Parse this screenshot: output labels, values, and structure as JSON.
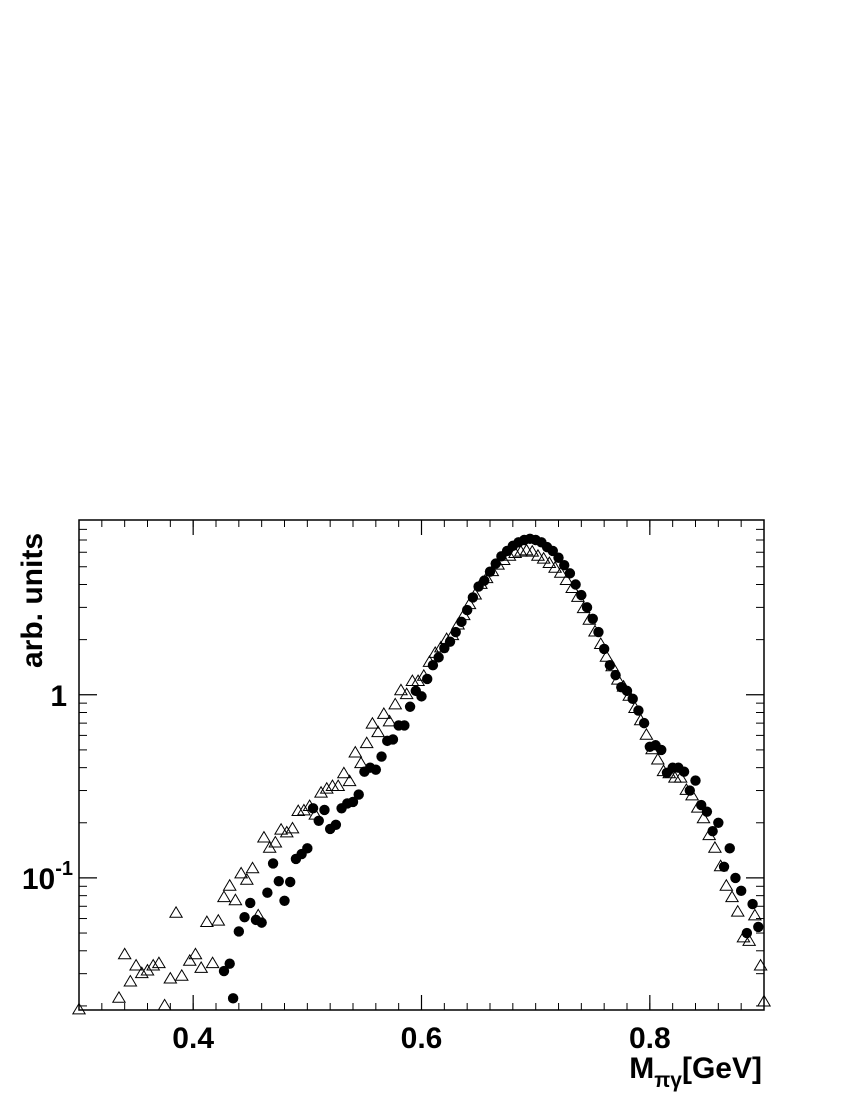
{
  "chart_data": {
    "type": "scatter",
    "title": "",
    "xlabel": "M",
    "xlabel_subscript": "πγ",
    "xlabel_unit": "[GeV]",
    "ylabel": "arb. units",
    "y_scale": "log",
    "xlim": [
      0.3,
      0.9
    ],
    "ylim": [
      0.019,
      9.0
    ],
    "x_ticks": [
      {
        "value": 0.4,
        "label": "0.4"
      },
      {
        "value": 0.6,
        "label": "0.6"
      },
      {
        "value": 0.8,
        "label": "0.8"
      }
    ],
    "y_ticks": [
      {
        "value": 1,
        "label": "1"
      },
      {
        "value": 0.1,
        "label": "10",
        "exponent": "-1"
      }
    ],
    "grid": false,
    "legend": "none",
    "series": [
      {
        "marker": "open-triangle",
        "color": "#000000",
        "points": [
          [
            0.3,
            0.019
          ],
          [
            0.335,
            0.022
          ],
          [
            0.34,
            0.038
          ],
          [
            0.345,
            0.027
          ],
          [
            0.35,
            0.033
          ],
          [
            0.355,
            0.03
          ],
          [
            0.36,
            0.031
          ],
          [
            0.365,
            0.033
          ],
          [
            0.37,
            0.034
          ],
          [
            0.375,
            0.02
          ],
          [
            0.38,
            0.028
          ],
          [
            0.385,
            0.064
          ],
          [
            0.39,
            0.029
          ],
          [
            0.397,
            0.035
          ],
          [
            0.402,
            0.038
          ],
          [
            0.407,
            0.032
          ],
          [
            0.412,
            0.057
          ],
          [
            0.417,
            0.034
          ],
          [
            0.422,
            0.058
          ],
          [
            0.427,
            0.078
          ],
          [
            0.432,
            0.09
          ],
          [
            0.437,
            0.075
          ],
          [
            0.442,
            0.105
          ],
          [
            0.447,
            0.097
          ],
          [
            0.452,
            0.112
          ],
          [
            0.457,
            0.062
          ],
          [
            0.462,
            0.165
          ],
          [
            0.467,
            0.145
          ],
          [
            0.472,
            0.155
          ],
          [
            0.477,
            0.182
          ],
          [
            0.482,
            0.176
          ],
          [
            0.487,
            0.185
          ],
          [
            0.492,
            0.23
          ],
          [
            0.497,
            0.232
          ],
          [
            0.502,
            0.245
          ],
          [
            0.507,
            0.22
          ],
          [
            0.512,
            0.29
          ],
          [
            0.517,
            0.305
          ],
          [
            0.522,
            0.315
          ],
          [
            0.527,
            0.315
          ],
          [
            0.532,
            0.37
          ],
          [
            0.537,
            0.335
          ],
          [
            0.542,
            0.48
          ],
          [
            0.547,
            0.42
          ],
          [
            0.552,
            0.54
          ],
          [
            0.557,
            0.69
          ],
          [
            0.562,
            0.62
          ],
          [
            0.567,
            0.78
          ],
          [
            0.572,
            0.71
          ],
          [
            0.577,
            0.88
          ],
          [
            0.582,
            1.05
          ],
          [
            0.587,
            1.0
          ],
          [
            0.592,
            1.18
          ],
          [
            0.597,
            1.18
          ],
          [
            0.602,
            1.26
          ],
          [
            0.607,
            1.5
          ],
          [
            0.612,
            1.68
          ],
          [
            0.617,
            1.8
          ],
          [
            0.622,
            2.0
          ],
          [
            0.627,
            2.1
          ],
          [
            0.632,
            2.4
          ],
          [
            0.637,
            2.7
          ],
          [
            0.642,
            3.1
          ],
          [
            0.647,
            3.5
          ],
          [
            0.652,
            4.0
          ],
          [
            0.657,
            4.3
          ],
          [
            0.662,
            4.7
          ],
          [
            0.667,
            5.1
          ],
          [
            0.672,
            5.4
          ],
          [
            0.677,
            5.7
          ],
          [
            0.682,
            5.9
          ],
          [
            0.687,
            6.0
          ],
          [
            0.692,
            6.1
          ],
          [
            0.697,
            6.0
          ],
          [
            0.702,
            5.7
          ],
          [
            0.707,
            5.5
          ],
          [
            0.712,
            5.2
          ],
          [
            0.717,
            4.9
          ],
          [
            0.722,
            4.6
          ],
          [
            0.727,
            4.2
          ],
          [
            0.732,
            3.8
          ],
          [
            0.737,
            3.4
          ],
          [
            0.742,
            2.95
          ],
          [
            0.747,
            2.55
          ],
          [
            0.752,
            2.2
          ],
          [
            0.757,
            1.88
          ],
          [
            0.762,
            1.6
          ],
          [
            0.767,
            1.42
          ],
          [
            0.772,
            1.2
          ],
          [
            0.777,
            1.1
          ],
          [
            0.782,
            0.98
          ],
          [
            0.787,
            0.84
          ],
          [
            0.792,
            0.72
          ],
          [
            0.797,
            0.6
          ],
          [
            0.802,
            0.5
          ],
          [
            0.807,
            0.44
          ],
          [
            0.812,
            0.38
          ],
          [
            0.817,
            0.37
          ],
          [
            0.822,
            0.35
          ],
          [
            0.827,
            0.35
          ],
          [
            0.832,
            0.3
          ],
          [
            0.837,
            0.28
          ],
          [
            0.842,
            0.24
          ],
          [
            0.847,
            0.21
          ],
          [
            0.852,
            0.17
          ],
          [
            0.857,
            0.145
          ],
          [
            0.862,
            0.115
          ],
          [
            0.867,
            0.09
          ],
          [
            0.872,
            0.078
          ],
          [
            0.877,
            0.065
          ],
          [
            0.882,
            0.047
          ],
          [
            0.887,
            0.045
          ],
          [
            0.892,
            0.062
          ],
          [
            0.897,
            0.033
          ],
          [
            0.9,
            0.021
          ]
        ]
      },
      {
        "marker": "filled-circle",
        "color": "#000000",
        "points": [
          [
            0.427,
            0.031
          ],
          [
            0.432,
            0.034
          ],
          [
            0.435,
            0.022
          ],
          [
            0.44,
            0.051
          ],
          [
            0.445,
            0.061
          ],
          [
            0.45,
            0.073
          ],
          [
            0.455,
            0.059
          ],
          [
            0.46,
            0.057
          ],
          [
            0.465,
            0.083
          ],
          [
            0.47,
            0.12
          ],
          [
            0.475,
            0.096
          ],
          [
            0.48,
            0.075
          ],
          [
            0.485,
            0.095
          ],
          [
            0.49,
            0.127
          ],
          [
            0.495,
            0.135
          ],
          [
            0.5,
            0.145
          ],
          [
            0.505,
            0.24
          ],
          [
            0.51,
            0.205
          ],
          [
            0.515,
            0.235
          ],
          [
            0.52,
            0.185
          ],
          [
            0.525,
            0.195
          ],
          [
            0.53,
            0.24
          ],
          [
            0.535,
            0.255
          ],
          [
            0.54,
            0.26
          ],
          [
            0.545,
            0.285
          ],
          [
            0.55,
            0.38
          ],
          [
            0.555,
            0.4
          ],
          [
            0.56,
            0.39
          ],
          [
            0.565,
            0.46
          ],
          [
            0.57,
            0.56
          ],
          [
            0.575,
            0.57
          ],
          [
            0.58,
            0.68
          ],
          [
            0.585,
            0.68
          ],
          [
            0.59,
            0.86
          ],
          [
            0.595,
            1.05
          ],
          [
            0.6,
            0.98
          ],
          [
            0.605,
            1.22
          ],
          [
            0.61,
            1.45
          ],
          [
            0.615,
            1.6
          ],
          [
            0.62,
            1.8
          ],
          [
            0.625,
            1.95
          ],
          [
            0.63,
            2.2
          ],
          [
            0.635,
            2.5
          ],
          [
            0.64,
            2.9
          ],
          [
            0.645,
            3.4
          ],
          [
            0.65,
            3.9
          ],
          [
            0.655,
            4.2
          ],
          [
            0.66,
            4.7
          ],
          [
            0.665,
            5.2
          ],
          [
            0.67,
            5.7
          ],
          [
            0.675,
            6.1
          ],
          [
            0.68,
            6.5
          ],
          [
            0.685,
            6.8
          ],
          [
            0.69,
            7.0
          ],
          [
            0.695,
            7.1
          ],
          [
            0.7,
            7.0
          ],
          [
            0.705,
            6.8
          ],
          [
            0.71,
            6.4
          ],
          [
            0.715,
            6.1
          ],
          [
            0.72,
            5.6
          ],
          [
            0.725,
            5.1
          ],
          [
            0.73,
            4.6
          ],
          [
            0.735,
            4.0
          ],
          [
            0.74,
            3.5
          ],
          [
            0.745,
            3.0
          ],
          [
            0.75,
            2.6
          ],
          [
            0.755,
            2.2
          ],
          [
            0.76,
            1.78
          ],
          [
            0.765,
            1.45
          ],
          [
            0.77,
            1.28
          ],
          [
            0.775,
            1.1
          ],
          [
            0.78,
            1.05
          ],
          [
            0.785,
            0.95
          ],
          [
            0.79,
            0.82
          ],
          [
            0.795,
            0.7
          ],
          [
            0.8,
            0.52
          ],
          [
            0.805,
            0.53
          ],
          [
            0.81,
            0.5
          ],
          [
            0.815,
            0.375
          ],
          [
            0.82,
            0.4
          ],
          [
            0.825,
            0.4
          ],
          [
            0.83,
            0.38
          ],
          [
            0.835,
            0.3
          ],
          [
            0.84,
            0.34
          ],
          [
            0.845,
            0.25
          ],
          [
            0.85,
            0.23
          ],
          [
            0.855,
            0.18
          ],
          [
            0.86,
            0.2
          ],
          [
            0.865,
            0.115
          ],
          [
            0.87,
            0.145
          ],
          [
            0.875,
            0.1
          ],
          [
            0.88,
            0.085
          ],
          [
            0.885,
            0.05
          ],
          [
            0.89,
            0.072
          ],
          [
            0.895,
            0.054
          ]
        ]
      }
    ]
  }
}
